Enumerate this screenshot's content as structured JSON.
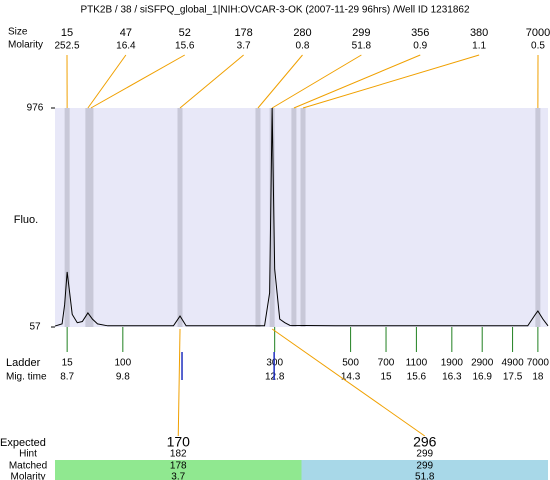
{
  "chart_data": {
    "type": "line",
    "title": "PTK2B / 38 / siSFPQ_global_1|NIH:OVCAR-3-OK (2007-11-29 96hrs) /Well ID 1231862",
    "y_label": "Fluo.",
    "xlim": [
      8.46,
      18.2
    ],
    "ylim": [
      57,
      976
    ],
    "yticks": [
      57,
      976
    ],
    "color": "#000000",
    "x": [
      8.46,
      8.6,
      8.65,
      8.7,
      8.75,
      8.8,
      8.9,
      9.0,
      9.11,
      9.2,
      9.3,
      9.5,
      10.8,
      10.93,
      11.05,
      12.6,
      12.7,
      12.75,
      12.8,
      12.9,
      13.0,
      13.1,
      14.0,
      17.8,
      17.95,
      18.0,
      18.1,
      18.2
    ],
    "values": [
      61,
      70,
      150,
      288,
      200,
      110,
      75,
      80,
      116,
      90,
      70,
      62,
      62,
      103,
      62,
      62,
      200,
      976,
      300,
      90,
      75,
      64,
      62,
      62,
      110,
      124,
      90,
      62
    ],
    "peaks": {
      "size_label": "Size",
      "molarity_label": "Molarity",
      "sizes": [
        15,
        47,
        52,
        178,
        280,
        299,
        356,
        380,
        7000
      ],
      "molarity": [
        252.5,
        16.4,
        15.6,
        3.7,
        0.8,
        51.8,
        0.9,
        1.1,
        0.5
      ],
      "mig_time": [
        8.7,
        9.11,
        9.17,
        10.93,
        12.47,
        12.75,
        13.18,
        13.36,
        18.0
      ]
    },
    "ladder": {
      "label": "Ladder",
      "mig_label": "Mig. time",
      "sizes": [
        15,
        100,
        300,
        500,
        700,
        1100,
        1900,
        2900,
        4900,
        7000
      ],
      "mig_time": [
        8.7,
        9.8,
        12.8,
        14.3,
        15,
        15.6,
        16.3,
        16.9,
        17.5,
        18
      ]
    },
    "expected": {
      "label": "Expected",
      "hint_label": "Hint",
      "matched_label": "Matched",
      "molarity_label": "Molarity",
      "columns": [
        {
          "expected": 170,
          "hint": 182,
          "matched": 178,
          "molarity": 3.7,
          "color": "#90e890"
        },
        {
          "expected": 296,
          "hint": 299,
          "matched": 299,
          "molarity": 51.8,
          "color": "#a8d8e8"
        }
      ]
    }
  }
}
